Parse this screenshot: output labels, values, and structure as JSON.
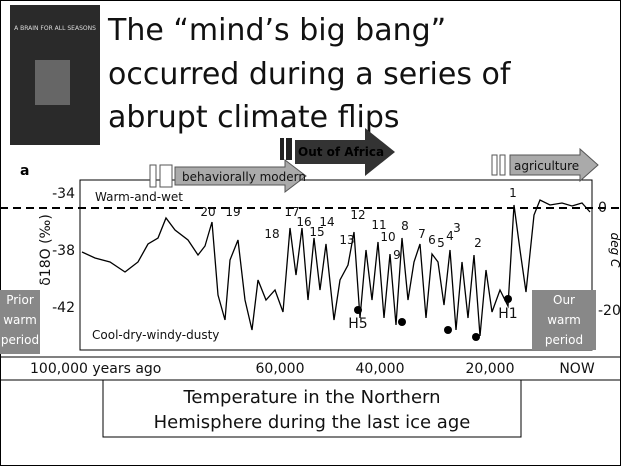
{
  "header": {
    "book_title": "A BRAIN FOR ALL SEASONS",
    "title_lines": [
      "The “mind’s big bang”",
      "occurred during a series of",
      "abrupt climate flips"
    ]
  },
  "figure": {
    "panel_label": "a",
    "left_axis_label": "δ18O (‰)",
    "left_ticks": [
      "-34",
      "-38",
      "-42"
    ],
    "right_axis_label": "deg C",
    "right_ticks": [
      "0",
      "-20"
    ],
    "warm_label": "Warm-and-wet",
    "cool_label": "Cool-dry-windy-dusty",
    "events": [
      "behaviorally modern",
      "Out of Africa",
      "agriculture"
    ],
    "stages": [
      "20",
      "19",
      "18",
      "17",
      "16",
      "15",
      "14",
      "13",
      "12",
      "11",
      "10",
      "9",
      "8",
      "7",
      "6",
      "5",
      "4",
      "3",
      "2",
      "1"
    ],
    "heinrich": [
      "H5",
      "H1"
    ],
    "prior_period": [
      "Prior",
      "warm",
      "period"
    ],
    "our_period": [
      "Our",
      "warm",
      "period"
    ],
    "time_labels": [
      "100,000 years ago",
      "60,000",
      "40,000",
      "20,000",
      "NOW"
    ]
  },
  "caption": [
    "Temperature in the Northern",
    "Hemisphere during the last ice age"
  ]
}
